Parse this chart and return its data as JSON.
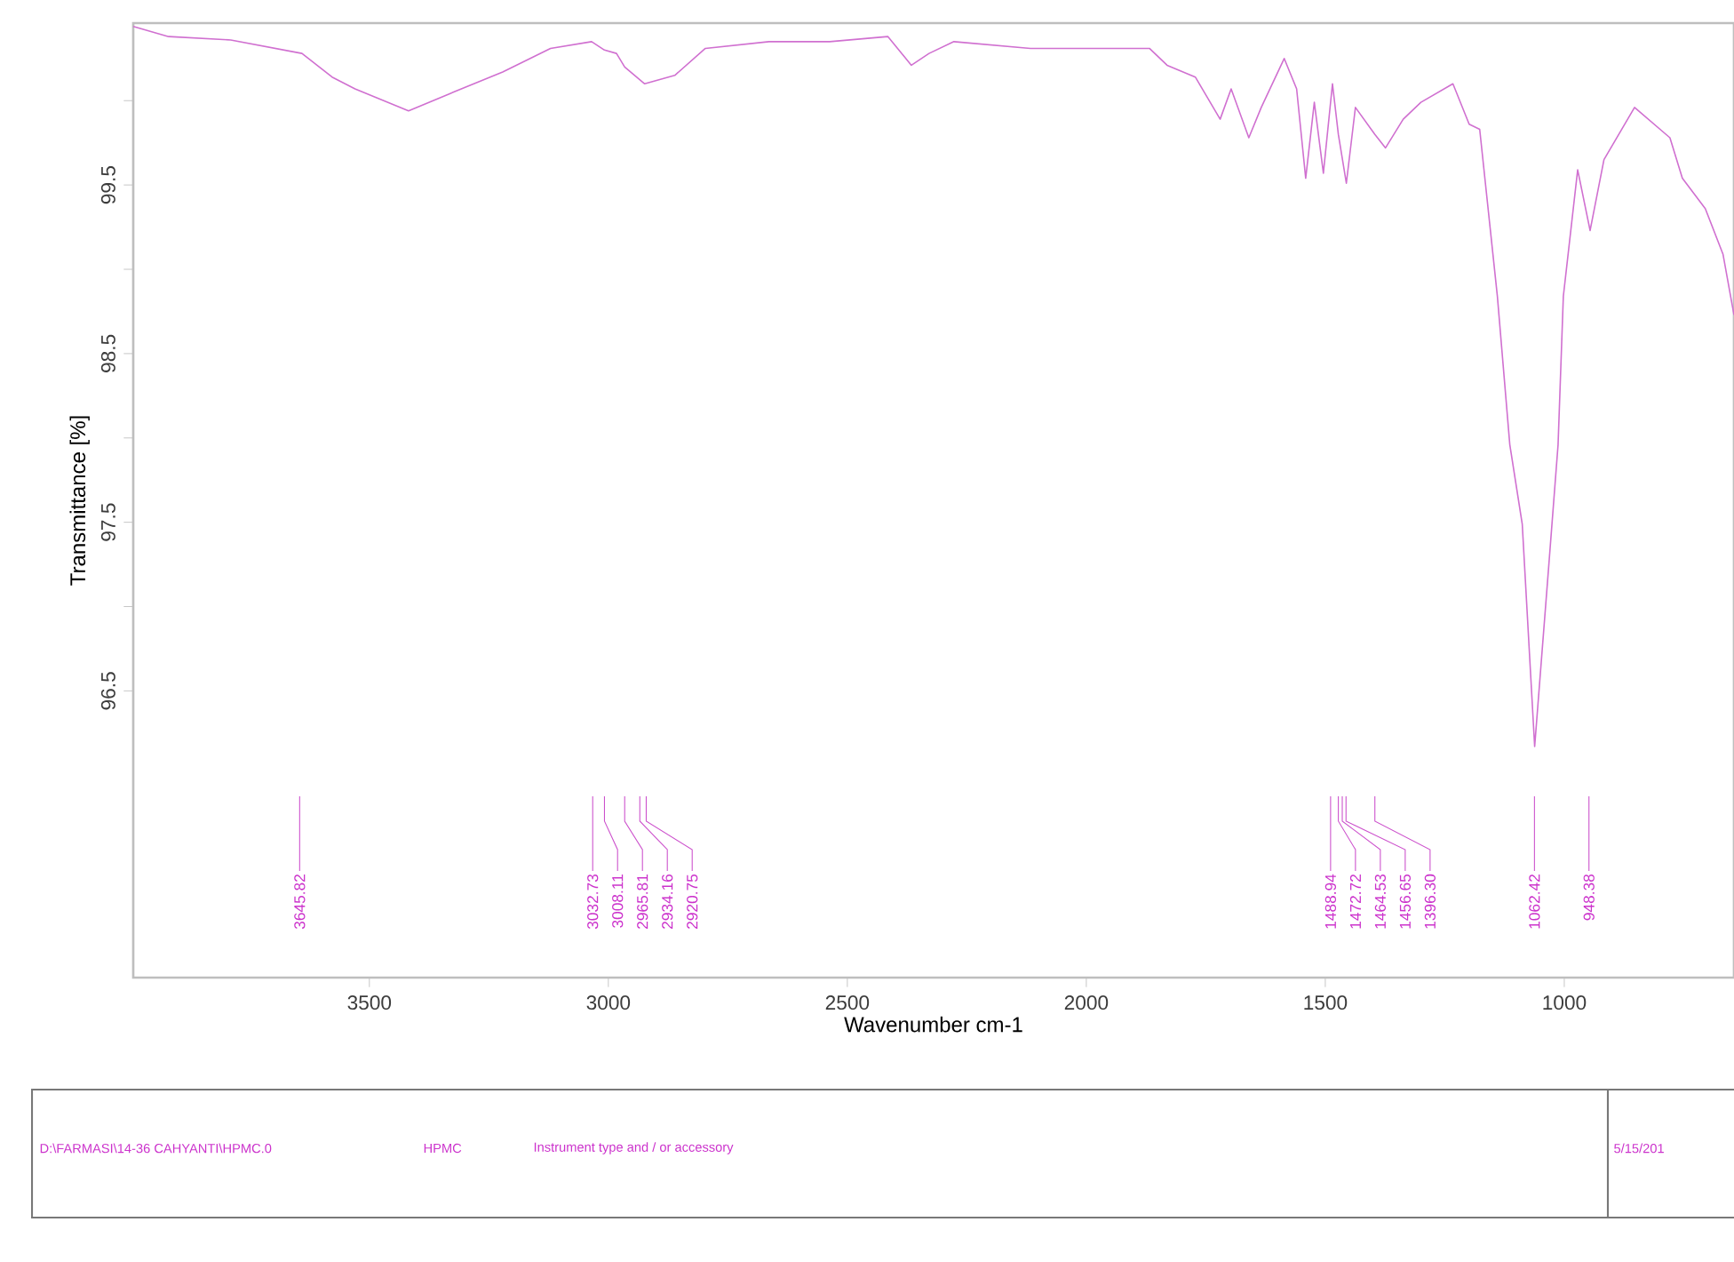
{
  "chart_data": {
    "type": "line",
    "xlabel": "Wavenumber cm-1",
    "ylabel": "Transmittance [%]",
    "xlim": [
      3994,
      645
    ],
    "ylim": [
      94.8,
      100.46
    ],
    "xticks": [
      3500,
      3000,
      2500,
      2000,
      1500,
      1000
    ],
    "yticks": [
      {
        "value": 96.5,
        "label": "96.5"
      },
      {
        "value": 97,
        "label": null
      },
      {
        "value": 97.5,
        "label": "97.5"
      },
      {
        "value": 98,
        "label": null
      },
      {
        "value": 98.5,
        "label": "98.5"
      },
      {
        "value": 99,
        "label": null
      },
      {
        "value": 99.5,
        "label": "99.5"
      },
      {
        "value": 100,
        "label": null
      }
    ],
    "grid": false,
    "marker": "none",
    "line_style": "solid",
    "series": [
      {
        "color": "#d070d0",
        "x": [
          3994,
          3920,
          3790,
          3641,
          3578,
          3530,
          3418,
          3333,
          3221,
          3121,
          3035,
          3008.11,
          2983,
          2965.81,
          2924,
          2861,
          2797,
          2664,
          2537,
          2415,
          2366,
          2329,
          2277,
          2117,
          1931,
          1868,
          1831,
          1772,
          1720,
          1697,
          1660,
          1634,
          1586,
          1560,
          1541,
          1523,
          1504,
          1485,
          1472.72,
          1456,
          1437,
          1396.3,
          1374,
          1337,
          1300,
          1233,
          1199,
          1177,
          1140,
          1114,
          1088,
          1062,
          1032,
          1013,
          1002,
          972,
          946,
          917,
          853,
          779,
          753,
          705,
          668,
          645
        ],
        "values": [
          100.44,
          100.38,
          100.36,
          100.28,
          100.14,
          100.07,
          99.94,
          100.04,
          100.17,
          100.31,
          100.35,
          100.3,
          100.28,
          100.2,
          100.1,
          100.15,
          100.31,
          100.35,
          100.35,
          100.38,
          100.21,
          100.28,
          100.35,
          100.31,
          100.31,
          100.31,
          100.21,
          100.14,
          99.89,
          100.07,
          99.78,
          99.96,
          100.25,
          100.07,
          99.54,
          99.99,
          99.57,
          100.1,
          99.8,
          99.51,
          99.96,
          99.8,
          99.72,
          99.89,
          99.99,
          100.1,
          99.86,
          99.83,
          98.84,
          97.96,
          97.49,
          96.17,
          97.26,
          97.96,
          98.84,
          99.59,
          99.23,
          99.65,
          99.96,
          99.78,
          99.54,
          99.36,
          99.09,
          98.73
        ]
      }
    ],
    "annotations": [
      {
        "text": "3645.82",
        "x": 3645.82
      },
      {
        "text": "3032.73",
        "x": 3032.73
      },
      {
        "text": "3008.11",
        "x": 3008.11
      },
      {
        "text": "2965.81",
        "x": 2965.81
      },
      {
        "text": "2934.16",
        "x": 2934.16
      },
      {
        "text": "2920.75",
        "x": 2920.75
      },
      {
        "text": "1488.94",
        "x": 1488.94
      },
      {
        "text": "1472.72",
        "x": 1472.72
      },
      {
        "text": "1464.53",
        "x": 1464.53
      },
      {
        "text": "1456.65",
        "x": 1456.65
      },
      {
        "text": "1396.30",
        "x": 1396.3
      },
      {
        "text": "1062.42",
        "x": 1062.42
      },
      {
        "text": "948.38",
        "x": 948.38
      },
      "D:\\FARMASI\\14-36 CAHYANTI\\HPMC.0",
      "HPMC",
      "Instrument type and / or accessory",
      "5/15/201"
    ]
  }
}
